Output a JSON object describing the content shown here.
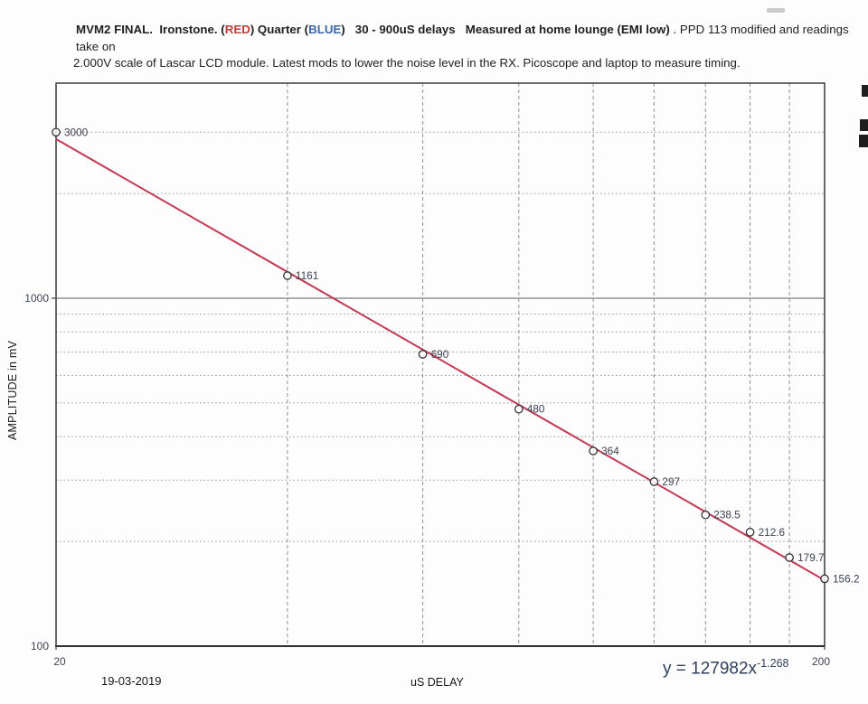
{
  "page": {
    "background_color": "#fdfdfd"
  },
  "header": {
    "line1_segments": [
      {
        "text": "MVM2 FINAL.  Ironstone. (",
        "bold": true,
        "color": "#1f1f1f"
      },
      {
        "text": "RED",
        "bold": true,
        "color": "#c13b3b"
      },
      {
        "text": ") Quarter (",
        "bold": true,
        "color": "#1f1f1f"
      },
      {
        "text": "BLUE",
        "bold": true,
        "color": "#3a66a8"
      },
      {
        "text": ")   30 - 900uS delays   Measured at home lounge (EMI low)",
        "bold": true,
        "color": "#1f1f1f"
      },
      {
        "text": " . PPD 113 modified and readings take on",
        "bold": false,
        "color": "#1f1f1f"
      }
    ],
    "line2": "2.000V scale of Lascar LCD module. Latest mods to lower the noise level in the RX. Picoscope and laptop to measure timing."
  },
  "equation": {
    "base": "y = 127982x",
    "exponent": "-1.268"
  },
  "footer": {
    "date": "19-03-2019"
  },
  "chart_data": {
    "type": "scatter",
    "title": "",
    "xlabel": "uS DELAY",
    "ylabel": "AMPLITUDE in mV",
    "x_scale": "log",
    "y_scale": "log",
    "xlim": [
      20,
      200
    ],
    "ylim": [
      100,
      4150
    ],
    "grid_on": true,
    "legend": "none",
    "x": [
      20,
      40,
      60,
      80,
      100,
      120,
      140,
      160,
      180,
      200
    ],
    "y": [
      3000,
      1161,
      690,
      480,
      364,
      297,
      238.5,
      212.6,
      179.7,
      156.2
    ],
    "point_labels": [
      "3000",
      "1161",
      "690",
      "480",
      "364",
      "297",
      "238.5",
      "212.6",
      "179.7",
      "156.2"
    ],
    "x_ticks": [
      20,
      200
    ],
    "x_tick_labels": [
      "20",
      "200"
    ],
    "y_ticks": [
      100,
      1000
    ],
    "y_tick_labels": [
      "100",
      "1000"
    ],
    "x_gridlines_dashed": [
      40,
      60,
      80,
      100,
      120,
      140,
      160,
      180
    ],
    "y_gridlines_dotted": [
      200,
      300,
      400,
      500,
      600,
      700,
      800,
      900,
      2000,
      3000
    ],
    "y_gridline_solid": 1000,
    "trendline": {
      "type": "power",
      "coefficient": 127982,
      "exponent": -1.268,
      "label": "y = 127982x^-1.268"
    },
    "colors": {
      "trendline": "#c23a53",
      "marker_stroke": "#333333",
      "grid": "#929292",
      "tick_label": "#3f4354",
      "point_label": "#3c4152",
      "border": "#454545"
    }
  }
}
